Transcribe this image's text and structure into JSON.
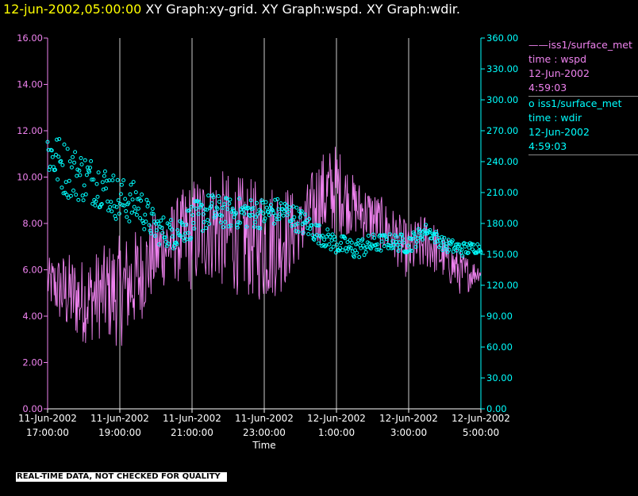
{
  "title": {
    "time": "12-jun-2002,05:00:00",
    "rest": "XY Graph:xy-grid.  XY Graph:wspd.  XY Graph:wdir."
  },
  "legend": {
    "wspd": {
      "line1": "——iss1/surface_met",
      "line2": "time : wspd",
      "line3": "12-Jun-2002",
      "line4": "4:59:03"
    },
    "wdir": {
      "line1": "o  iss1/surface_met",
      "line2": "time : wdir",
      "line3": "12-Jun-2002",
      "line4": "4:59:03"
    }
  },
  "footer": "REAL-TIME DATA, NOT CHECKED FOR QUALITY",
  "colors": {
    "wspd": "#ee82ee",
    "wdir": "#00ffff",
    "grid": "#ffffff",
    "background": "#000000"
  },
  "chart_data": {
    "type": "line",
    "xlabel": "Time",
    "x_ticks": [
      [
        "11-Jun-2002",
        "17:00:00"
      ],
      [
        "11-Jun-2002",
        "19:00:00"
      ],
      [
        "11-Jun-2002",
        "21:00:00"
      ],
      [
        "11-Jun-2002",
        "23:00:00"
      ],
      [
        "12-Jun-2002",
        "1:00:00"
      ],
      [
        "12-Jun-2002",
        "3:00:00"
      ],
      [
        "12-Jun-2002",
        "5:00:00"
      ]
    ],
    "x_range_hours": [
      17,
      29
    ],
    "left_axis": {
      "ylim": [
        0,
        16
      ],
      "ticks": [
        "0.00",
        "2.00",
        "4.00",
        "6.00",
        "8.00",
        "10.00",
        "12.00",
        "14.00",
        "16.00"
      ]
    },
    "right_axis": {
      "ylim": [
        0,
        360
      ],
      "ticks": [
        "0.00",
        "30.00",
        "60.00",
        "90.00",
        "120.00",
        "150.00",
        "180.00",
        "210.00",
        "240.00",
        "270.00",
        "300.00",
        "330.00",
        "360.00"
      ]
    },
    "series": [
      {
        "name": "iss1/surface_met time : wspd",
        "axis": "left",
        "style": "line",
        "envelope": [
          {
            "t": 17.0,
            "lo": 4.5,
            "hi": 6.5
          },
          {
            "t": 17.5,
            "lo": 3.2,
            "hi": 6.8
          },
          {
            "t": 18.0,
            "lo": 2.8,
            "hi": 6.5
          },
          {
            "t": 18.5,
            "lo": 3.0,
            "hi": 7.0
          },
          {
            "t": 19.0,
            "lo": 2.6,
            "hi": 7.5
          },
          {
            "t": 19.5,
            "lo": 3.5,
            "hi": 7.8
          },
          {
            "t": 20.0,
            "lo": 5.0,
            "hi": 8.5
          },
          {
            "t": 20.5,
            "lo": 5.5,
            "hi": 9.0
          },
          {
            "t": 21.0,
            "lo": 5.0,
            "hi": 10.0
          },
          {
            "t": 21.5,
            "lo": 5.5,
            "hi": 10.5
          },
          {
            "t": 22.0,
            "lo": 5.0,
            "hi": 10.2
          },
          {
            "t": 22.5,
            "lo": 4.8,
            "hi": 10.0
          },
          {
            "t": 23.0,
            "lo": 4.5,
            "hi": 9.8
          },
          {
            "t": 23.5,
            "lo": 5.0,
            "hi": 10.0
          },
          {
            "t": 24.0,
            "lo": 6.5,
            "hi": 9.0
          },
          {
            "t": 24.5,
            "lo": 7.0,
            "hi": 11.0
          },
          {
            "t": 25.0,
            "lo": 7.5,
            "hi": 11.5
          },
          {
            "t": 25.5,
            "lo": 7.5,
            "hi": 10.0
          },
          {
            "t": 26.0,
            "lo": 7.0,
            "hi": 9.5
          },
          {
            "t": 26.5,
            "lo": 6.5,
            "hi": 8.8
          },
          {
            "t": 27.0,
            "lo": 5.5,
            "hi": 8.0
          },
          {
            "t": 27.5,
            "lo": 6.0,
            "hi": 8.5
          },
          {
            "t": 28.0,
            "lo": 5.5,
            "hi": 7.5
          },
          {
            "t": 28.5,
            "lo": 4.8,
            "hi": 6.8
          },
          {
            "t": 29.0,
            "lo": 5.6,
            "hi": 6.2
          }
        ]
      },
      {
        "name": "iss1/surface_met time : wdir",
        "axis": "right",
        "style": "scatter",
        "envelope": [
          {
            "t": 17.0,
            "lo": 225,
            "hi": 275
          },
          {
            "t": 17.5,
            "lo": 205,
            "hi": 260
          },
          {
            "t": 18.0,
            "lo": 200,
            "hi": 250
          },
          {
            "t": 18.5,
            "lo": 195,
            "hi": 240
          },
          {
            "t": 19.0,
            "lo": 180,
            "hi": 225
          },
          {
            "t": 19.5,
            "lo": 180,
            "hi": 220
          },
          {
            "t": 20.0,
            "lo": 160,
            "hi": 190
          },
          {
            "t": 20.5,
            "lo": 155,
            "hi": 185
          },
          {
            "t": 21.0,
            "lo": 165,
            "hi": 200
          },
          {
            "t": 21.5,
            "lo": 175,
            "hi": 210
          },
          {
            "t": 22.0,
            "lo": 175,
            "hi": 205
          },
          {
            "t": 22.5,
            "lo": 175,
            "hi": 205
          },
          {
            "t": 23.0,
            "lo": 175,
            "hi": 205
          },
          {
            "t": 23.5,
            "lo": 180,
            "hi": 205
          },
          {
            "t": 24.0,
            "lo": 170,
            "hi": 195
          },
          {
            "t": 24.5,
            "lo": 160,
            "hi": 180
          },
          {
            "t": 25.0,
            "lo": 150,
            "hi": 170
          },
          {
            "t": 25.5,
            "lo": 145,
            "hi": 165
          },
          {
            "t": 26.0,
            "lo": 150,
            "hi": 170
          },
          {
            "t": 26.5,
            "lo": 155,
            "hi": 170
          },
          {
            "t": 27.0,
            "lo": 150,
            "hi": 170
          },
          {
            "t": 27.5,
            "lo": 168,
            "hi": 180
          },
          {
            "t": 28.0,
            "lo": 152,
            "hi": 166
          },
          {
            "t": 28.5,
            "lo": 148,
            "hi": 162
          },
          {
            "t": 29.0,
            "lo": 152,
            "hi": 162
          }
        ]
      }
    ]
  }
}
